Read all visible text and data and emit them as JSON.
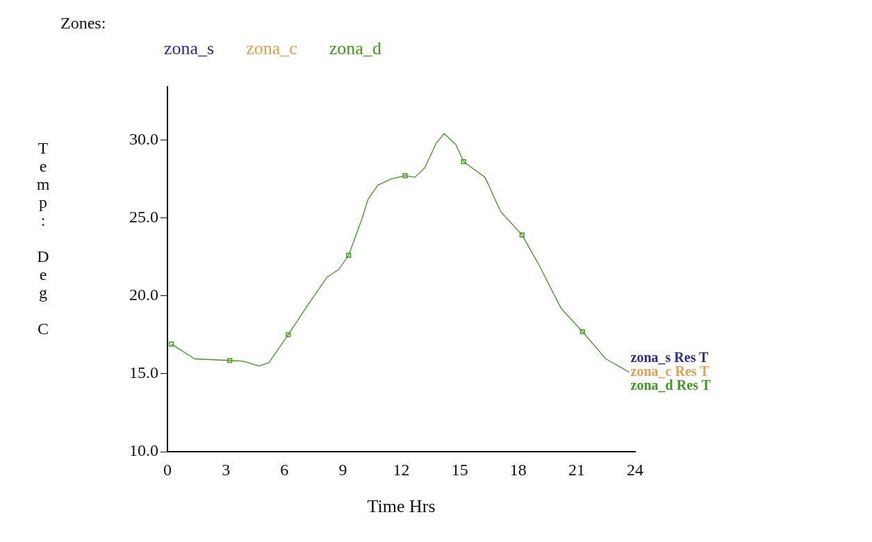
{
  "chart_data": {
    "type": "line",
    "legend_title": "Zones:",
    "legend": "top",
    "xlabel": "Time Hrs",
    "ylabel": "Temp: Deg C",
    "xlim": [
      0,
      24
    ],
    "ylim": [
      10,
      33.4
    ],
    "xticks": [
      0,
      3,
      6,
      9,
      12,
      15,
      18,
      21,
      24
    ],
    "yticks": [
      {
        "value": 10,
        "label": "10.0"
      },
      {
        "value": 15,
        "label": "15.0"
      },
      {
        "value": 20,
        "label": "20.0"
      },
      {
        "value": 25,
        "label": "25.0"
      },
      {
        "value": 30,
        "label": "30.0"
      }
    ],
    "grid": false,
    "marker": "none",
    "line_style": "solid",
    "x": [
      0.2,
      1.4,
      3.2,
      3.9,
      4.7,
      5.2,
      6.2,
      7.2,
      8.2,
      8.8,
      9.3,
      10.0,
      10.3,
      10.8,
      11.5,
      12.2,
      12.7,
      13.2,
      13.8,
      14.2,
      14.8,
      15.2,
      16.3,
      17.1,
      18.2,
      19.1,
      20.2,
      21.3,
      22.5,
      23.7
    ],
    "series": [
      {
        "name": "zona_s",
        "color": "#2e2a9a",
        "values": [
          null,
          null,
          null,
          null,
          null,
          null,
          null,
          null,
          null,
          null,
          null,
          null,
          null,
          null,
          null,
          null,
          null,
          null,
          null,
          null,
          null,
          null,
          null,
          null,
          null,
          null,
          null,
          null,
          null,
          null
        ]
      },
      {
        "name": "zona_c",
        "color": "#e0a050",
        "values": [
          null,
          null,
          null,
          null,
          null,
          null,
          null,
          null,
          null,
          null,
          null,
          null,
          null,
          null,
          null,
          null,
          null,
          null,
          null,
          null,
          null,
          null,
          null,
          null,
          null,
          null,
          null,
          null,
          null,
          null
        ]
      },
      {
        "name": "zona_d",
        "color": "#3c9a1c",
        "values": [
          16.9,
          15.95,
          15.85,
          15.8,
          15.5,
          15.7,
          17.5,
          19.4,
          21.2,
          21.7,
          22.6,
          25.0,
          26.2,
          27.1,
          27.5,
          27.7,
          27.6,
          28.2,
          29.8,
          30.4,
          29.7,
          28.6,
          27.6,
          25.4,
          23.9,
          21.9,
          19.2,
          17.7,
          15.95,
          15.1
        ]
      },
      {
        "type": "scatter",
        "marker": "square",
        "color": "#3c9a1c",
        "x": [
          0.2,
          3.2,
          6.2,
          9.3,
          12.2,
          15.2,
          18.2,
          21.3
        ],
        "values": [
          16.9,
          15.85,
          17.5,
          22.6,
          27.7,
          28.6,
          23.9,
          17.7
        ]
      }
    ],
    "annotations": [
      "zona_s Res T",
      "zona_c Res T",
      "zona_d Res T"
    ]
  }
}
